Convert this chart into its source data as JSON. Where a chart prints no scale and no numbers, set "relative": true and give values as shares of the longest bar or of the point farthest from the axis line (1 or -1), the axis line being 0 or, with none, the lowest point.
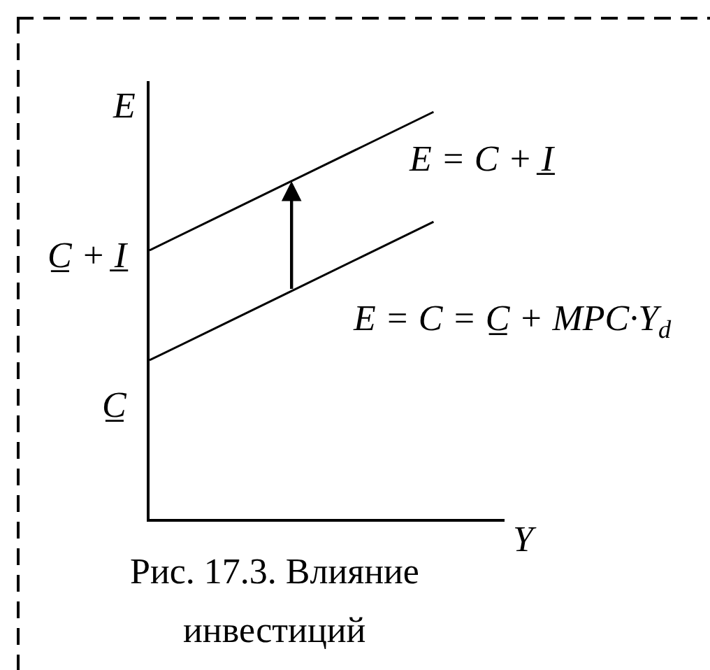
{
  "chart_data": {
    "type": "line",
    "relative": true,
    "xlabel": "Y",
    "ylabel": "E",
    "tick_labels": false,
    "categories": [
      null,
      null,
      null,
      null,
      null,
      null
    ],
    "series": [
      {
        "name": "E = C + I̲",
        "color": "#000000",
        "values": [
          0.66,
          0.745,
          0.83,
          0.915,
          1,
          null
        ]
      },
      {
        "name": "E = C = C̲ + MPC·Y$_{d}$",
        "color": "#000000",
        "values": [
          0.39,
          0.475,
          0.56,
          0.645,
          0.73,
          null
        ]
      }
    ],
    "annotations": [
      "C̲ + I̲",
      "C̲",
      "Рис. 17.3. Влияние инвестиций"
    ]
  }
}
